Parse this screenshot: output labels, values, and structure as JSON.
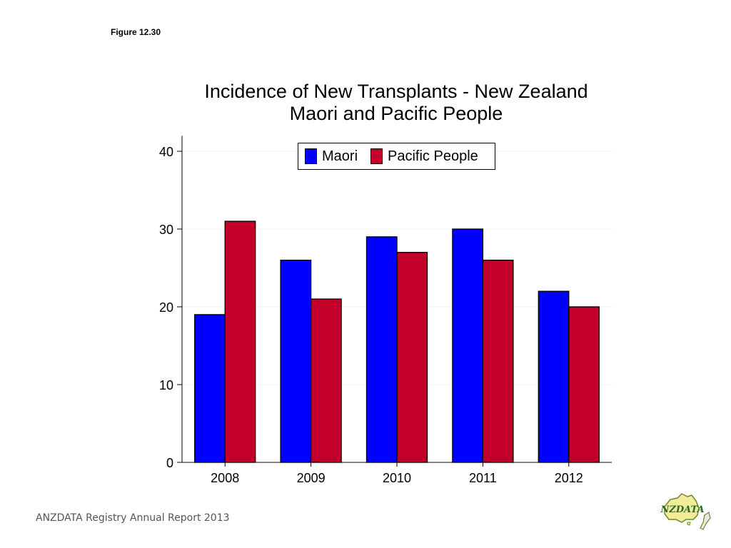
{
  "figure_label": "Figure 12.30",
  "footer": "ANZDATA Registry Annual Report 2013",
  "logo": {
    "text": "ANZDATA",
    "icon": "anzdata-logo-icon"
  },
  "chart_data": {
    "type": "bar",
    "title": [
      "Incidence of New Transplants - New Zealand",
      "Maori and Pacific People"
    ],
    "xlabel": "",
    "ylabel": "",
    "categories": [
      "2008",
      "2009",
      "2010",
      "2011",
      "2012"
    ],
    "series": [
      {
        "name": "Maori",
        "color": "#0000ff",
        "values": [
          19,
          26,
          29,
          30,
          22
        ]
      },
      {
        "name": "Pacific People",
        "color": "#c20029",
        "values": [
          31,
          21,
          27,
          26,
          20
        ]
      }
    ],
    "ylim": [
      0,
      42
    ],
    "yticks": [
      0,
      10,
      20,
      30,
      40
    ],
    "grid": true,
    "legend_position": "top-right"
  }
}
